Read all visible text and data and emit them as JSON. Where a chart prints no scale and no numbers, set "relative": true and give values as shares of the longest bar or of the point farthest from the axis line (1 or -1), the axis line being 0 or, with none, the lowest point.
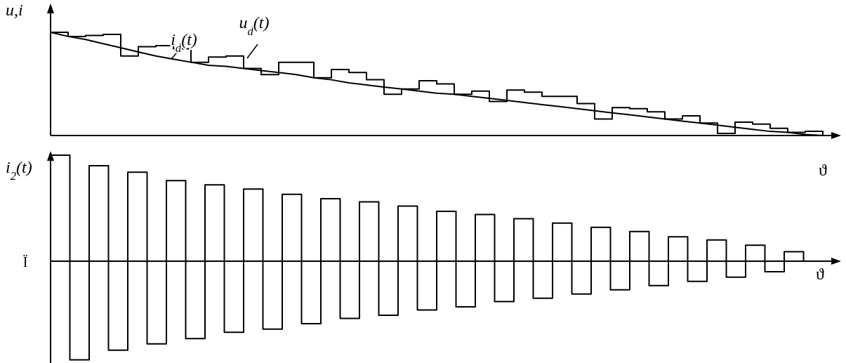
{
  "chart_data": [
    {
      "type": "line",
      "relative": true,
      "ylabel": "u,i",
      "xlabel": "ϑ",
      "categories": [
        null,
        null,
        null,
        null,
        null,
        null,
        null,
        null,
        null,
        null,
        null,
        null,
        null,
        null,
        null,
        null,
        null,
        null,
        null,
        null,
        null,
        null,
        null,
        null,
        null,
        null,
        null,
        null,
        null,
        null,
        null,
        null,
        null,
        null,
        null,
        null,
        null,
        null,
        null,
        null,
        null,
        null,
        null,
        null,
        null
      ],
      "series": [
        {
          "name": "i$_{d}$(t)",
          "color": "#000000",
          "values": [
            1.0,
            0.96,
            0.93,
            0.89,
            0.85,
            0.81,
            0.77,
            0.74,
            0.71,
            0.68,
            0.67,
            0.65,
            0.63,
            0.61,
            0.59,
            0.56,
            0.54,
            0.51,
            0.49,
            0.47,
            0.45,
            0.43,
            0.41,
            0.4,
            0.38,
            0.36,
            0.34,
            0.32,
            0.3,
            0.28,
            0.26,
            0.24,
            0.22,
            0.2,
            0.18,
            0.16,
            0.14,
            0.12,
            0.1,
            0.08,
            0.06,
            0.04,
            0.03,
            0.01,
            0
          ]
        },
        {
          "name": "u$_{d}$(t)",
          "type": "step",
          "color": "#000000",
          "values": [
            1.0,
            0.96,
            0.97,
            0.98,
            0.77,
            0.86,
            0.87,
            0.84,
            0.71,
            0.76,
            0.77,
            0.65,
            0.59,
            0.71,
            0.71,
            0.56,
            0.64,
            0.61,
            0.54,
            0.4,
            0.45,
            0.53,
            0.5,
            0.4,
            0.43,
            0.33,
            0.44,
            0.42,
            0.38,
            0.38,
            0.31,
            0.16,
            0.27,
            0.26,
            0.23,
            0.16,
            0.19,
            0.12,
            0.02,
            0.13,
            0.11,
            0.07,
            0.03,
            0.04,
            0
          ]
        }
      ]
    },
    {
      "type": "step",
      "relative": true,
      "ylabel": "i$_{2}$(t)",
      "xlabel": "ϑ",
      "annotations": [
        "Ï"
      ],
      "color": "#000000",
      "categories": [
        null,
        null,
        null,
        null,
        null,
        null,
        null,
        null,
        null,
        null,
        null,
        null,
        null,
        null,
        null,
        null,
        null,
        null,
        null,
        null,
        null,
        null,
        null,
        null,
        null,
        null,
        null,
        null,
        null,
        null,
        null,
        null,
        null,
        null,
        null,
        null,
        null,
        null,
        null,
        null,
        null
      ],
      "values": [
        1.0,
        -0.93,
        0.9,
        -0.84,
        0.84,
        -0.78,
        0.76,
        -0.73,
        0.72,
        -0.67,
        0.68,
        -0.64,
        0.63,
        -0.59,
        0.59,
        -0.54,
        0.56,
        -0.51,
        0.52,
        -0.46,
        0.47,
        -0.43,
        0.44,
        -0.38,
        0.4,
        -0.35,
        0.36,
        -0.31,
        0.32,
        -0.27,
        0.28,
        -0.23,
        0.23,
        -0.19,
        0.2,
        -0.15,
        0.15,
        -0.1,
        0.09,
        0,
        0
      ]
    }
  ]
}
